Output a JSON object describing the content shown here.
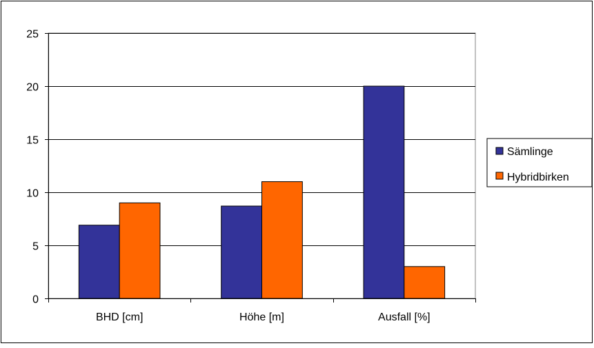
{
  "chart_data": {
    "type": "bar",
    "title": "",
    "xlabel": "",
    "ylabel": "",
    "categories": [
      "BHD [cm]",
      "Höhe [m]",
      "Ausfall [%]"
    ],
    "series": [
      {
        "name": "Sämlinge",
        "values": [
          6.9,
          8.7,
          20
        ],
        "color": "#333399"
      },
      {
        "name": "Hybridbirken",
        "values": [
          9,
          11,
          3
        ],
        "color": "#FF6600"
      }
    ],
    "ylim": [
      0,
      25
    ],
    "yticks": [
      "0",
      "5",
      "10",
      "15",
      "20",
      "25"
    ],
    "grid": true,
    "legend_position": "right",
    "plot_background": "#ffffff"
  }
}
